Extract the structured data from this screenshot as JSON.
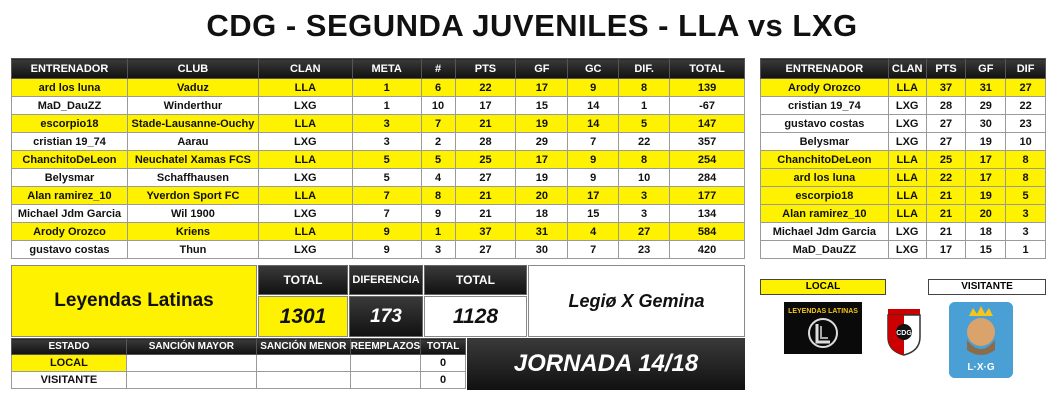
{
  "title": "CDG - SEGUNDA JUVENILES - LLA vs LXG",
  "main_table": {
    "headers": [
      "ENTRENADOR",
      "CLUB",
      "CLAN",
      "META",
      "#",
      "PTS",
      "GF",
      "GC",
      "DIF.",
      "TOTAL"
    ],
    "rows": [
      {
        "entrenador": "ard los luna",
        "club": "Vaduz",
        "clan": "LLA",
        "meta": "1",
        "num": "6",
        "pts": "22",
        "gf": "17",
        "gc": "9",
        "dif": "8",
        "total": "139",
        "style": "yellow"
      },
      {
        "entrenador": "MaD_DauZZ",
        "club": "Winderthur",
        "clan": "LXG",
        "meta": "1",
        "num": "10",
        "pts": "17",
        "gf": "15",
        "gc": "14",
        "dif": "1",
        "total": "-67",
        "style": "white"
      },
      {
        "entrenador": "escorpio18",
        "club": "Stade-Lausanne-Ouchy",
        "clan": "LLA",
        "meta": "3",
        "num": "7",
        "pts": "21",
        "gf": "19",
        "gc": "14",
        "dif": "5",
        "total": "147",
        "style": "yellow"
      },
      {
        "entrenador": "cristian 19_74",
        "club": "Aarau",
        "clan": "LXG",
        "meta": "3",
        "num": "2",
        "pts": "28",
        "gf": "29",
        "gc": "7",
        "dif": "22",
        "total": "357",
        "style": "white"
      },
      {
        "entrenador": "ChanchitoDeLeon",
        "club": "Neuchatel Xamas FCS",
        "clan": "LLA",
        "meta": "5",
        "num": "5",
        "pts": "25",
        "gf": "17",
        "gc": "9",
        "dif": "8",
        "total": "254",
        "style": "yellow"
      },
      {
        "entrenador": "Belysmar",
        "club": "Schaffhausen",
        "clan": "LXG",
        "meta": "5",
        "num": "4",
        "pts": "27",
        "gf": "19",
        "gc": "9",
        "dif": "10",
        "total": "284",
        "style": "white"
      },
      {
        "entrenador": "Alan ramirez_10",
        "club": "Yverdon Sport FC",
        "clan": "LLA",
        "meta": "7",
        "num": "8",
        "pts": "21",
        "gf": "20",
        "gc": "17",
        "dif": "3",
        "total": "177",
        "style": "yellow"
      },
      {
        "entrenador": "Michael Jdm Garcia",
        "club": "Wil 1900",
        "clan": "LXG",
        "meta": "7",
        "num": "9",
        "pts": "21",
        "gf": "18",
        "gc": "15",
        "dif": "3",
        "total": "134",
        "style": "white"
      },
      {
        "entrenador": "Arody Orozco",
        "club": "Kriens",
        "clan": "LLA",
        "meta": "9",
        "num": "1",
        "pts": "37",
        "gf": "31",
        "gc": "4",
        "dif": "27",
        "total": "584",
        "style": "yellow"
      },
      {
        "entrenador": "gustavo costas",
        "club": "Thun",
        "clan": "LXG",
        "meta": "9",
        "num": "3",
        "pts": "27",
        "gf": "30",
        "gc": "7",
        "dif": "23",
        "total": "420",
        "style": "white"
      }
    ]
  },
  "side_table": {
    "headers": [
      "ENTRENADOR",
      "CLAN",
      "PTS",
      "GF",
      "DIF"
    ],
    "rows": [
      {
        "entrenador": "Arody Orozco",
        "clan": "LLA",
        "pts": "37",
        "gf": "31",
        "dif": "27",
        "style": "yellow"
      },
      {
        "entrenador": "cristian 19_74",
        "clan": "LXG",
        "pts": "28",
        "gf": "29",
        "dif": "22",
        "style": "white"
      },
      {
        "entrenador": "gustavo costas",
        "clan": "LXG",
        "pts": "27",
        "gf": "30",
        "dif": "23",
        "style": "white"
      },
      {
        "entrenador": "Belysmar",
        "clan": "LXG",
        "pts": "27",
        "gf": "19",
        "dif": "10",
        "style": "white"
      },
      {
        "entrenador": "ChanchitoDeLeon",
        "clan": "LLA",
        "pts": "25",
        "gf": "17",
        "dif": "8",
        "style": "yellow"
      },
      {
        "entrenador": "ard los luna",
        "clan": "LLA",
        "pts": "22",
        "gf": "17",
        "dif": "8",
        "style": "yellow"
      },
      {
        "entrenador": "escorpio18",
        "clan": "LLA",
        "pts": "21",
        "gf": "19",
        "dif": "5",
        "style": "yellow"
      },
      {
        "entrenador": "Alan ramirez_10",
        "clan": "LLA",
        "pts": "21",
        "gf": "20",
        "dif": "3",
        "style": "yellow"
      },
      {
        "entrenador": "Michael Jdm Garcia",
        "clan": "LXG",
        "pts": "21",
        "gf": "18",
        "dif": "3",
        "style": "white"
      },
      {
        "entrenador": "MaD_DauZZ",
        "clan": "LXG",
        "pts": "17",
        "gf": "15",
        "dif": "1",
        "style": "white"
      }
    ]
  },
  "summary": {
    "local_team": "Leyendas Latinas",
    "visit_team": "Legiø X Gemina",
    "total_label_left": "TOTAL",
    "diff_label": "DIFERENCIA",
    "total_label_right": "TOTAL",
    "local_total": "1301",
    "difference": "173",
    "visit_total": "1128",
    "jornada": "JORNADA 14/18"
  },
  "sanctions": {
    "headers": [
      "ESTADO",
      "SANCIÓN MAYOR",
      "SANCIÓN MENOR",
      "REEMPLAZOS",
      "TOTAL"
    ],
    "rows": [
      {
        "estado": "LOCAL",
        "mayor": "",
        "menor": "",
        "reemplazos": "",
        "total": "0",
        "style": "yellow"
      },
      {
        "estado": "VISITANTE",
        "mayor": "",
        "menor": "",
        "reemplazos": "",
        "total": "0",
        "style": "white"
      }
    ]
  },
  "legend": {
    "local": "LOCAL",
    "visitante": "VISITANTE"
  },
  "logos": {
    "left": {
      "name": "leyendas-latinas-logo",
      "text": "LEYENDAS LATINAS"
    },
    "center": {
      "name": "cdg-crest-logo",
      "text": "CDG"
    },
    "right": {
      "name": "lxg-logo",
      "text": "L·X·G"
    }
  },
  "colors": {
    "yellow": "#fff200",
    "dark": "#111111",
    "white": "#ffffff"
  }
}
